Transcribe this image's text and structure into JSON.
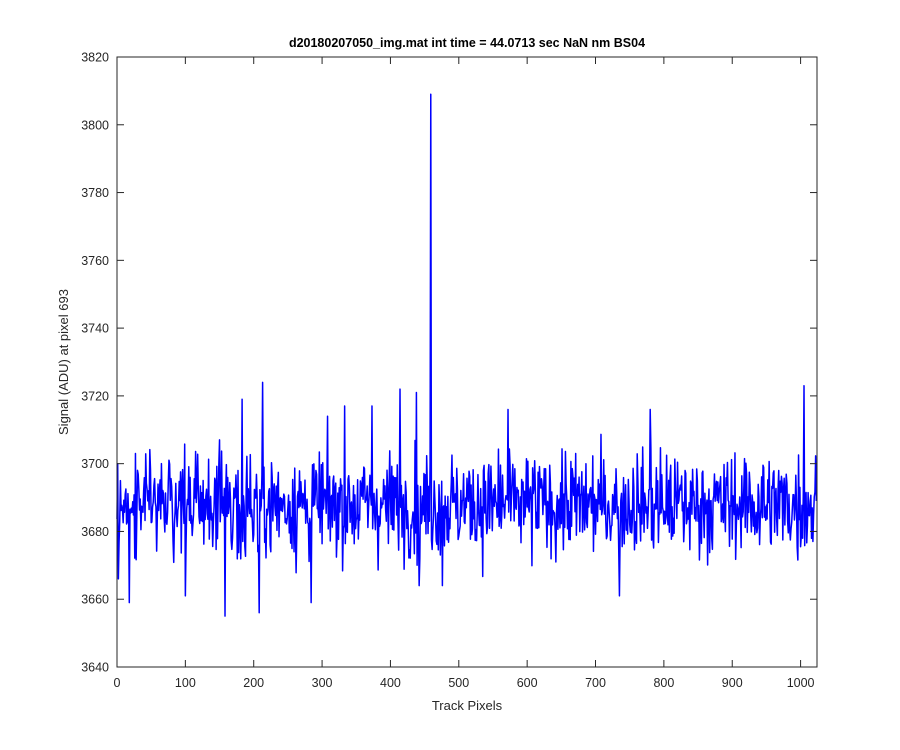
{
  "chart_data": {
    "type": "line",
    "title": "d20180207050_img.mat int time = 44.0713 sec  NaN nm BS04",
    "xlabel": "Track Pixels",
    "ylabel": "Signal (ADU) at pixel 693",
    "xlim": [
      0,
      1024
    ],
    "ylim": [
      3640,
      3820
    ],
    "xticks": [
      0,
      100,
      200,
      300,
      400,
      500,
      600,
      700,
      800,
      900,
      1000
    ],
    "yticks": [
      3640,
      3660,
      3680,
      3700,
      3720,
      3740,
      3760,
      3780,
      3800,
      3820
    ],
    "xtick_labels": [
      "0",
      "100",
      "200",
      "300",
      "400",
      "500",
      "600",
      "700",
      "800",
      "900",
      "1000"
    ],
    "ytick_labels": [
      "3640",
      "3660",
      "3680",
      "3700",
      "3720",
      "3740",
      "3760",
      "3780",
      "3800",
      "3820"
    ],
    "grid": false,
    "series": [
      {
        "color": "#0000ff",
        "n_points": 1024,
        "baseline": 3688,
        "min": 3655,
        "max": 3809,
        "notable_points": [
          {
            "x": 2,
            "y": 3666
          },
          {
            "x": 5,
            "y": 3695
          },
          {
            "x": 18,
            "y": 3659
          },
          {
            "x": 27,
            "y": 3703
          },
          {
            "x": 100,
            "y": 3661
          },
          {
            "x": 158,
            "y": 3655
          },
          {
            "x": 183,
            "y": 3719
          },
          {
            "x": 208,
            "y": 3656
          },
          {
            "x": 213,
            "y": 3724
          },
          {
            "x": 284,
            "y": 3659
          },
          {
            "x": 333,
            "y": 3717
          },
          {
            "x": 373,
            "y": 3717
          },
          {
            "x": 414,
            "y": 3722
          },
          {
            "x": 438,
            "y": 3721
          },
          {
            "x": 442,
            "y": 3664
          },
          {
            "x": 459,
            "y": 3809
          },
          {
            "x": 476,
            "y": 3664
          },
          {
            "x": 572,
            "y": 3716
          },
          {
            "x": 735,
            "y": 3661
          },
          {
            "x": 780,
            "y": 3716
          },
          {
            "x": 1005,
            "y": 3723
          },
          {
            "x": 1023,
            "y": 3689
          }
        ]
      }
    ]
  }
}
